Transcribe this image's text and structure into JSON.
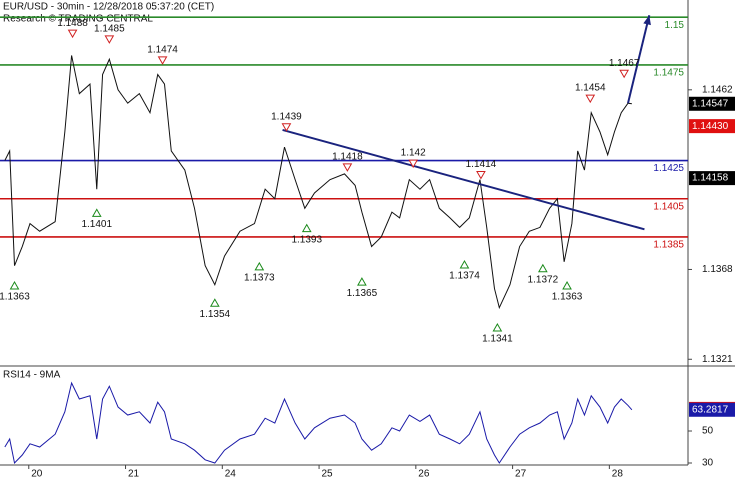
{
  "chart_data": [
    {
      "type": "line",
      "title": "EUR/USD - 30min - 12/28/2018 05:37:20 (CET)",
      "subtitle": "Research © TRADING CENTRAL",
      "x": [
        -0.33,
        -0.28,
        -0.23,
        -0.15,
        -0.07,
        0.03,
        0.19,
        0.29,
        0.36,
        0.44,
        0.55,
        0.62,
        0.68,
        0.75,
        0.84,
        0.94,
        1.06,
        1.17,
        1.25,
        1.32,
        1.39,
        1.53,
        1.63,
        1.74,
        1.84,
        1.94,
        2.1,
        2.25,
        2.36,
        2.46,
        2.56,
        2.67,
        2.77,
        2.87,
        3.03,
        3.18,
        3.29,
        3.36,
        3.46,
        3.56,
        3.67,
        3.75,
        3.85,
        3.96,
        4.06,
        4.16,
        4.27,
        4.37,
        4.47,
        4.58,
        4.65,
        4.73,
        4.78,
        4.89,
        4.99,
        5.09,
        5.2,
        5.3,
        5.38,
        5.45,
        5.53,
        5.59,
        5.66,
        5.73,
        5.82,
        5.9,
        5.97,
        6.04,
        6.11,
        6.15
      ],
      "values": [
        1.1425,
        1.143,
        1.137,
        1.138,
        1.1392,
        1.1388,
        1.1393,
        1.144,
        1.148,
        1.146,
        1.1465,
        1.141,
        1.147,
        1.1478,
        1.1462,
        1.1455,
        1.146,
        1.145,
        1.147,
        1.1465,
        1.143,
        1.142,
        1.14,
        1.137,
        1.136,
        1.1375,
        1.1388,
        1.1392,
        1.141,
        1.1405,
        1.1432,
        1.1415,
        1.14,
        1.1408,
        1.1415,
        1.1418,
        1.1412,
        1.1398,
        1.138,
        1.1385,
        1.1398,
        1.1395,
        1.1415,
        1.141,
        1.1415,
        1.14,
        1.1395,
        1.139,
        1.1395,
        1.1415,
        1.139,
        1.1358,
        1.1348,
        1.136,
        1.138,
        1.1388,
        1.139,
        1.14,
        1.1405,
        1.1372,
        1.1392,
        1.143,
        1.142,
        1.145,
        1.144,
        1.1428,
        1.144,
        1.145,
        1.1455,
        1.14547
      ],
      "color": "#111111",
      "xlim": [
        -0.38,
        6.73
      ],
      "ylim": [
        1.1318,
        1.1509
      ],
      "yticks": [
        1.1462,
        1.1368,
        1.1321
      ],
      "levels": [
        {
          "value": 1.15,
          "color": "#2a8a2a"
        },
        {
          "value": 1.1475,
          "color": "#2a8a2a"
        },
        {
          "value": 1.1425,
          "color": "#1a1aa8"
        },
        {
          "value": 1.1405,
          "color": "#cc1010"
        },
        {
          "value": 1.1385,
          "color": "#cc1010"
        }
      ],
      "pivots": [
        {
          "x": 0.37,
          "value": 1.1488,
          "kind": "high"
        },
        {
          "x": 0.75,
          "value": 1.1485,
          "kind": "high"
        },
        {
          "x": 1.3,
          "value": 1.1474,
          "kind": "high"
        },
        {
          "x": 2.58,
          "value": 1.1439,
          "kind": "high"
        },
        {
          "x": 3.21,
          "value": 1.1418,
          "kind": "high"
        },
        {
          "x": 3.89,
          "value": 1.142,
          "kind": "high"
        },
        {
          "x": 4.59,
          "value": 1.1414,
          "kind": "high"
        },
        {
          "x": 5.72,
          "value": 1.1454,
          "kind": "high"
        },
        {
          "x": 6.07,
          "value": 1.1467,
          "kind": "high"
        },
        {
          "x": -0.23,
          "value": 1.1363,
          "kind": "low"
        },
        {
          "x": 0.62,
          "value": 1.1401,
          "kind": "low"
        },
        {
          "x": 1.84,
          "value": 1.1354,
          "kind": "low"
        },
        {
          "x": 2.3,
          "value": 1.1373,
          "kind": "low"
        },
        {
          "x": 2.79,
          "value": 1.1393,
          "kind": "low"
        },
        {
          "x": 3.36,
          "value": 1.1365,
          "kind": "low"
        },
        {
          "x": 4.42,
          "value": 1.1374,
          "kind": "low"
        },
        {
          "x": 4.76,
          "value": 1.1341,
          "kind": "low"
        },
        {
          "x": 5.23,
          "value": 1.1372,
          "kind": "low"
        },
        {
          "x": 5.48,
          "value": 1.1363,
          "kind": "low"
        }
      ],
      "trendline": {
        "x": [
          2.54,
          6.28
        ],
        "values": [
          1.1441,
          1.1389
        ],
        "color": "#1a237e"
      },
      "arrow": {
        "x": [
          6.11,
          6.33
        ],
        "values": [
          1.1455,
          1.1501
        ],
        "color": "#1a237e"
      },
      "price_tags": [
        {
          "value": 1.14547,
          "color": "#000000"
        },
        {
          "value": 1.1443,
          "label": "1.14430",
          "color": "#e01010"
        },
        {
          "value": 1.14158,
          "color": "#000000"
        }
      ]
    },
    {
      "type": "line",
      "title": "RSI14 - 9MA",
      "x": [
        -0.33,
        -0.28,
        -0.23,
        -0.15,
        -0.07,
        0.03,
        0.19,
        0.29,
        0.36,
        0.44,
        0.55,
        0.62,
        0.68,
        0.75,
        0.84,
        0.94,
        1.06,
        1.17,
        1.25,
        1.32,
        1.39,
        1.53,
        1.63,
        1.74,
        1.84,
        1.94,
        2.1,
        2.25,
        2.36,
        2.46,
        2.56,
        2.67,
        2.77,
        2.87,
        3.03,
        3.18,
        3.29,
        3.36,
        3.46,
        3.56,
        3.67,
        3.75,
        3.85,
        3.96,
        4.06,
        4.16,
        4.27,
        4.37,
        4.47,
        4.58,
        4.65,
        4.73,
        4.78,
        4.89,
        4.99,
        5.09,
        5.2,
        5.3,
        5.38,
        5.45,
        5.53,
        5.59,
        5.66,
        5.73,
        5.82,
        5.9,
        5.97,
        6.04,
        6.11,
        6.15
      ],
      "values": [
        40,
        45,
        30,
        35,
        42,
        40,
        48,
        62,
        80,
        70,
        72,
        45,
        70,
        78,
        65,
        60,
        62,
        55,
        68,
        62,
        45,
        42,
        38,
        32,
        30,
        38,
        45,
        48,
        58,
        55,
        70,
        55,
        45,
        52,
        58,
        60,
        55,
        45,
        38,
        42,
        52,
        50,
        60,
        56,
        60,
        48,
        45,
        42,
        48,
        62,
        45,
        35,
        30,
        40,
        48,
        52,
        55,
        60,
        62,
        45,
        55,
        70,
        60,
        72,
        65,
        55,
        65,
        70,
        66,
        63.28
      ],
      "color": "#1a1aa8",
      "xlim": [
        -0.38,
        6.73
      ],
      "xticks": [
        {
          "value": 0,
          "label": "20"
        },
        {
          "value": 1,
          "label": "21"
        },
        {
          "value": 2,
          "label": "24"
        },
        {
          "value": 3,
          "label": "25"
        },
        {
          "value": 4,
          "label": "26"
        },
        {
          "value": 5,
          "label": "27"
        },
        {
          "value": 6,
          "label": "28"
        }
      ],
      "ylim": [
        28.75,
        89.4
      ],
      "yticks": [
        50,
        30
      ],
      "price_tags": [
        {
          "value": 63.8193,
          "color": "#e01010"
        },
        {
          "value": 63.2817,
          "color": "#1a1aa8"
        }
      ]
    }
  ]
}
